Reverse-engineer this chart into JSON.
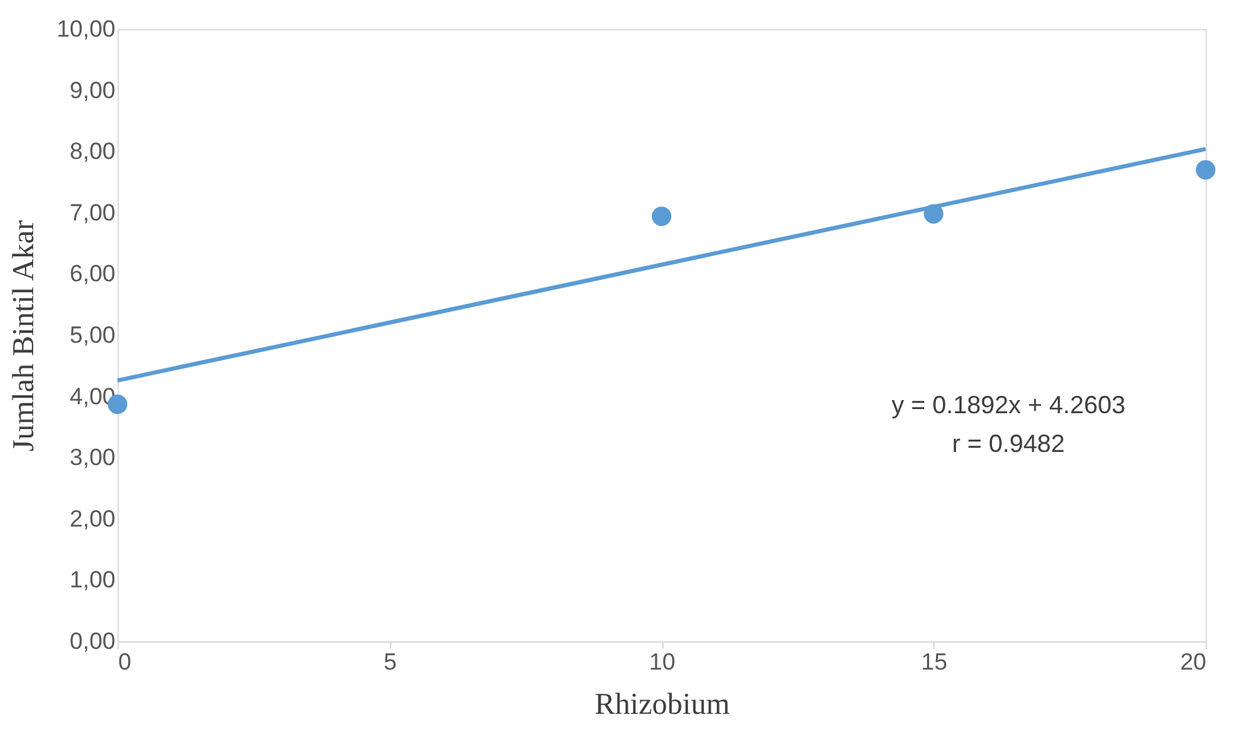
{
  "chart_data": {
    "type": "scatter",
    "xlabel": "Rhizobium",
    "ylabel": "Jumlah Bintil Akar",
    "x": [
      0,
      10,
      15,
      20
    ],
    "series": [
      {
        "color": "#5b9bd5",
        "marker": "circle",
        "values": [
          3.87,
          6.94,
          6.98,
          7.7
        ]
      },
      {
        "type": "line",
        "color": "#5b9bd5",
        "line_style": "solid",
        "x": [
          0,
          20
        ],
        "values": [
          4.26,
          8.04
        ]
      }
    ],
    "xlim": [
      0,
      20
    ],
    "xticks": [
      0,
      5,
      10,
      15,
      20
    ],
    "ylim": [
      0,
      10
    ],
    "yticks": [
      {
        "value": 0,
        "label": "0,00"
      },
      {
        "value": 1,
        "label": "1,00"
      },
      {
        "value": 2,
        "label": "2,00"
      },
      {
        "value": 3,
        "label": "3,00"
      },
      {
        "value": 4,
        "label": "4,00"
      },
      {
        "value": 5,
        "label": "5,00"
      },
      {
        "value": 6,
        "label": "6,00"
      },
      {
        "value": 7,
        "label": "7,00"
      },
      {
        "value": 8,
        "label": "8,00"
      },
      {
        "value": 9,
        "label": "9,00"
      },
      {
        "value": 10,
        "label": "10,00"
      }
    ],
    "annotations": [
      "y = 0.1892x + 4.2603",
      "r = 0.9482"
    ]
  }
}
